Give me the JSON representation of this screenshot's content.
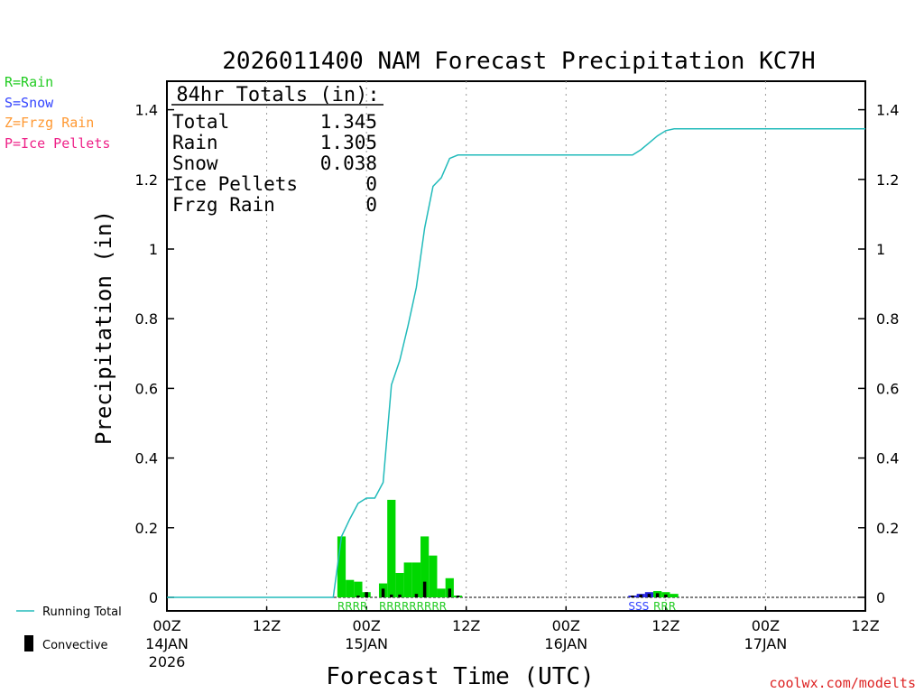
{
  "chart_data": {
    "type": "bar",
    "title": "2026011400 NAM Forecast Precipitation KC7H",
    "xlabel": "Forecast Time (UTC)",
    "ylabel": "Precipitation (in)",
    "ylim": [
      0,
      1.48
    ],
    "y_ticks": [
      "0",
      "0.2",
      "0.4",
      "0.6",
      "0.8",
      "1",
      "1.2",
      "1.4"
    ],
    "x_range_hours": [
      0,
      84
    ],
    "x_ticks": [
      {
        "hour": 0,
        "label": "00Z",
        "date": "14JAN",
        "year": "2026"
      },
      {
        "hour": 12,
        "label": "12Z",
        "date": "",
        "year": ""
      },
      {
        "hour": 24,
        "label": "00Z",
        "date": "15JAN",
        "year": ""
      },
      {
        "hour": 36,
        "label": "12Z",
        "date": "",
        "year": ""
      },
      {
        "hour": 48,
        "label": "00Z",
        "date": "16JAN",
        "year": ""
      },
      {
        "hour": 60,
        "label": "12Z",
        "date": "",
        "year": ""
      },
      {
        "hour": 72,
        "label": "00Z",
        "date": "17JAN",
        "year": ""
      },
      {
        "hour": 84,
        "label": "12Z",
        "date": "",
        "year": ""
      }
    ],
    "totals": {
      "heading": "84hr Totals (in):",
      "rows": [
        {
          "label": "Total",
          "value": "1.345"
        },
        {
          "label": "Rain",
          "value": "1.305"
        },
        {
          "label": "Snow",
          "value": "0.038"
        },
        {
          "label": "Ice Pellets",
          "value": "0"
        },
        {
          "label": "Frzg Rain",
          "value": "0"
        }
      ]
    },
    "ptype_legend": [
      {
        "text": "R=Rain",
        "color": "#22cc22"
      },
      {
        "text": "S=Snow",
        "color": "#3344ff"
      },
      {
        "text": "Z=Frzg Rain",
        "color": "#ff9933"
      },
      {
        "text": "P=Ice Pellets",
        "color": "#ee2288"
      }
    ],
    "series": [
      {
        "name": "Hourly Precipitation",
        "bars": [
          {
            "h": 21,
            "v": 0.175,
            "c": 0.0,
            "p": "R"
          },
          {
            "h": 22,
            "v": 0.05,
            "c": 0.0,
            "p": "R"
          },
          {
            "h": 23,
            "v": 0.045,
            "c": 0.005,
            "p": "R"
          },
          {
            "h": 24,
            "v": 0.015,
            "c": 0.015,
            "p": "R"
          },
          {
            "h": 26,
            "v": 0.04,
            "c": 0.025,
            "p": "R"
          },
          {
            "h": 27,
            "v": 0.28,
            "c": 0.008,
            "p": "R"
          },
          {
            "h": 28,
            "v": 0.07,
            "c": 0.008,
            "p": "R"
          },
          {
            "h": 29,
            "v": 0.1,
            "c": 0.0,
            "p": "R"
          },
          {
            "h": 30,
            "v": 0.1,
            "c": 0.01,
            "p": "R"
          },
          {
            "h": 31,
            "v": 0.175,
            "c": 0.045,
            "p": "R"
          },
          {
            "h": 32,
            "v": 0.12,
            "c": 0.0,
            "p": "R"
          },
          {
            "h": 33,
            "v": 0.025,
            "c": 0.0,
            "p": "R"
          },
          {
            "h": 34,
            "v": 0.055,
            "c": 0.025,
            "p": "R"
          },
          {
            "h": 35,
            "v": 0.005,
            "c": 0.005,
            "p": "R"
          },
          {
            "h": 56,
            "v": 0.005,
            "c": 0.005,
            "p": "S"
          },
          {
            "h": 57,
            "v": 0.01,
            "c": 0.008,
            "p": "S"
          },
          {
            "h": 58,
            "v": 0.015,
            "c": 0.01,
            "p": "S"
          },
          {
            "h": 59,
            "v": 0.018,
            "c": 0.012,
            "p": "R"
          },
          {
            "h": 60,
            "v": 0.015,
            "c": 0.008,
            "p": "R"
          },
          {
            "h": 61,
            "v": 0.01,
            "c": 0.0,
            "p": "R"
          }
        ]
      },
      {
        "name": "Running Total",
        "color": "#22bbbb",
        "x": [
          0,
          20,
          21,
          22,
          23,
          24,
          25,
          26,
          27,
          28,
          29,
          30,
          31,
          32,
          33,
          34,
          35,
          46,
          56,
          57,
          58,
          59,
          60,
          61,
          84
        ],
        "y": [
          0,
          0,
          0.175,
          0.225,
          0.27,
          0.285,
          0.285,
          0.33,
          0.61,
          0.68,
          0.78,
          0.89,
          1.06,
          1.18,
          1.205,
          1.26,
          1.27,
          1.27,
          1.27,
          1.285,
          1.305,
          1.325,
          1.34,
          1.345,
          1.345
        ]
      }
    ],
    "ptype_strings": [
      {
        "start_hour": 21,
        "text": "RRRR",
        "color": "#22cc22"
      },
      {
        "start_hour": 26,
        "text": "RRRRRRRRR",
        "color": "#22cc22"
      },
      {
        "start_hour": 56,
        "text": "SSS",
        "color": "#3344ff"
      },
      {
        "start_hour": 59,
        "text": "RRR",
        "color": "#22cc22"
      }
    ],
    "bottom_legend": {
      "running_total": "Running Total",
      "convective": "Convective"
    },
    "credit": "coolwx.com/modelts",
    "colors": {
      "rain": "#00d800",
      "snow": "#2222dd",
      "convective": "#000000",
      "running_total": "#22bbbb",
      "credit": "#dd2222"
    }
  }
}
